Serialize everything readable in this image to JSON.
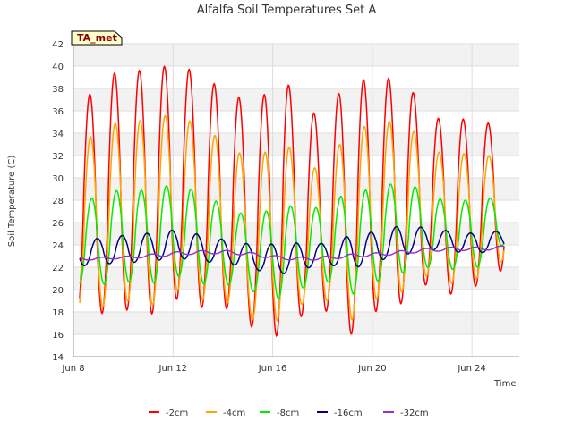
{
  "chart_data": {
    "type": "line",
    "title": "Alfalfa Soil Temperatures Set A",
    "xlabel": "Time",
    "ylabel": "Soil Temperature (C)",
    "site_badge": "TA_met",
    "xlim": [
      8.0,
      25.9
    ],
    "ylim": [
      14,
      42
    ],
    "yticks": [
      14,
      16,
      18,
      20,
      22,
      24,
      26,
      28,
      30,
      32,
      34,
      36,
      38,
      40,
      42
    ],
    "xticks": [
      {
        "value": 8,
        "label": "Jun 8"
      },
      {
        "value": 12,
        "label": "Jun 12"
      },
      {
        "value": 16,
        "label": "Jun 16"
      },
      {
        "value": 20,
        "label": "Jun 20"
      },
      {
        "value": 24,
        "label": "Jun 24"
      }
    ],
    "grid": true,
    "legend": "bottom",
    "data_start_day": 8.25,
    "data_end_day": 25.3,
    "peak_phase": 0.65,
    "series": [
      {
        "name": "-2cm",
        "color": "#ff0000",
        "lag": 0.0,
        "daily_max": [
          36.3,
          39.2,
          39.6,
          39.6,
          40.5,
          38.5,
          38.3,
          35.5,
          40.3,
          35.2,
          36.7,
          38.8,
          38.7,
          39.2,
          35.2,
          35.5,
          34.9,
          34.9
        ],
        "daily_min": [
          17.7,
          17.9,
          18.2,
          17.8,
          19.3,
          18.3,
          18.3,
          16.5,
          15.8,
          17.8,
          18.1,
          15.8,
          18.3,
          18.8,
          20.6,
          19.5,
          20.4,
          21.8
        ]
      },
      {
        "name": "-4cm",
        "color": "#ffa500",
        "lag": 0.03,
        "daily_max": [
          32.8,
          34.8,
          35.0,
          35.3,
          35.9,
          34.0,
          33.5,
          30.5,
          34.6,
          30.2,
          31.8,
          34.5,
          34.7,
          35.5,
          32.3,
          32.3,
          32.0,
          32.0
        ],
        "daily_min": [
          18.2,
          18.5,
          19.0,
          18.6,
          20.0,
          19.0,
          18.8,
          17.2,
          17.2,
          18.8,
          19.0,
          17.2,
          19.3,
          19.8,
          21.3,
          20.5,
          21.0,
          22.6
        ]
      },
      {
        "name": "-8cm",
        "color": "#00ee00",
        "lag": 0.08,
        "daily_max": [
          27.6,
          28.8,
          28.9,
          28.9,
          29.7,
          28.2,
          27.6,
          26.0,
          28.1,
          26.8,
          27.9,
          28.8,
          29.0,
          29.9,
          28.4,
          27.8,
          28.2,
          28.2
        ],
        "daily_min": [
          20.5,
          20.5,
          20.7,
          20.6,
          21.2,
          20.5,
          20.4,
          19.8,
          19.2,
          20.2,
          20.7,
          19.6,
          20.8,
          21.5,
          22.0,
          21.8,
          22.0,
          24.0
        ]
      },
      {
        "name": "-16cm",
        "color": "#00008b",
        "lag": 0.3,
        "daily_max": [
          24.3,
          24.7,
          24.9,
          25.1,
          25.4,
          24.8,
          24.4,
          24.0,
          24.1,
          24.2,
          24.1,
          25.0,
          25.2,
          25.8,
          25.5,
          25.2,
          25.0,
          25.3
        ],
        "daily_min": [
          22.1,
          22.3,
          22.4,
          22.6,
          22.8,
          22.5,
          22.3,
          21.8,
          21.3,
          21.9,
          22.2,
          21.9,
          22.6,
          23.1,
          23.6,
          23.4,
          23.2,
          23.8
        ]
      },
      {
        "name": "-32cm",
        "color": "#9932cc",
        "lag": 0.5,
        "daily_max": [
          22.9,
          22.9,
          23.0,
          23.2,
          23.4,
          23.5,
          23.5,
          23.3,
          23.0,
          22.9,
          23.0,
          23.2,
          23.3,
          23.5,
          23.7,
          23.8,
          23.8,
          23.9
        ],
        "daily_min": [
          22.6,
          22.7,
          22.8,
          22.9,
          23.1,
          23.2,
          23.2,
          23.0,
          22.7,
          22.6,
          22.7,
          22.9,
          23.0,
          23.2,
          23.4,
          23.5,
          23.5,
          23.6
        ]
      }
    ]
  }
}
